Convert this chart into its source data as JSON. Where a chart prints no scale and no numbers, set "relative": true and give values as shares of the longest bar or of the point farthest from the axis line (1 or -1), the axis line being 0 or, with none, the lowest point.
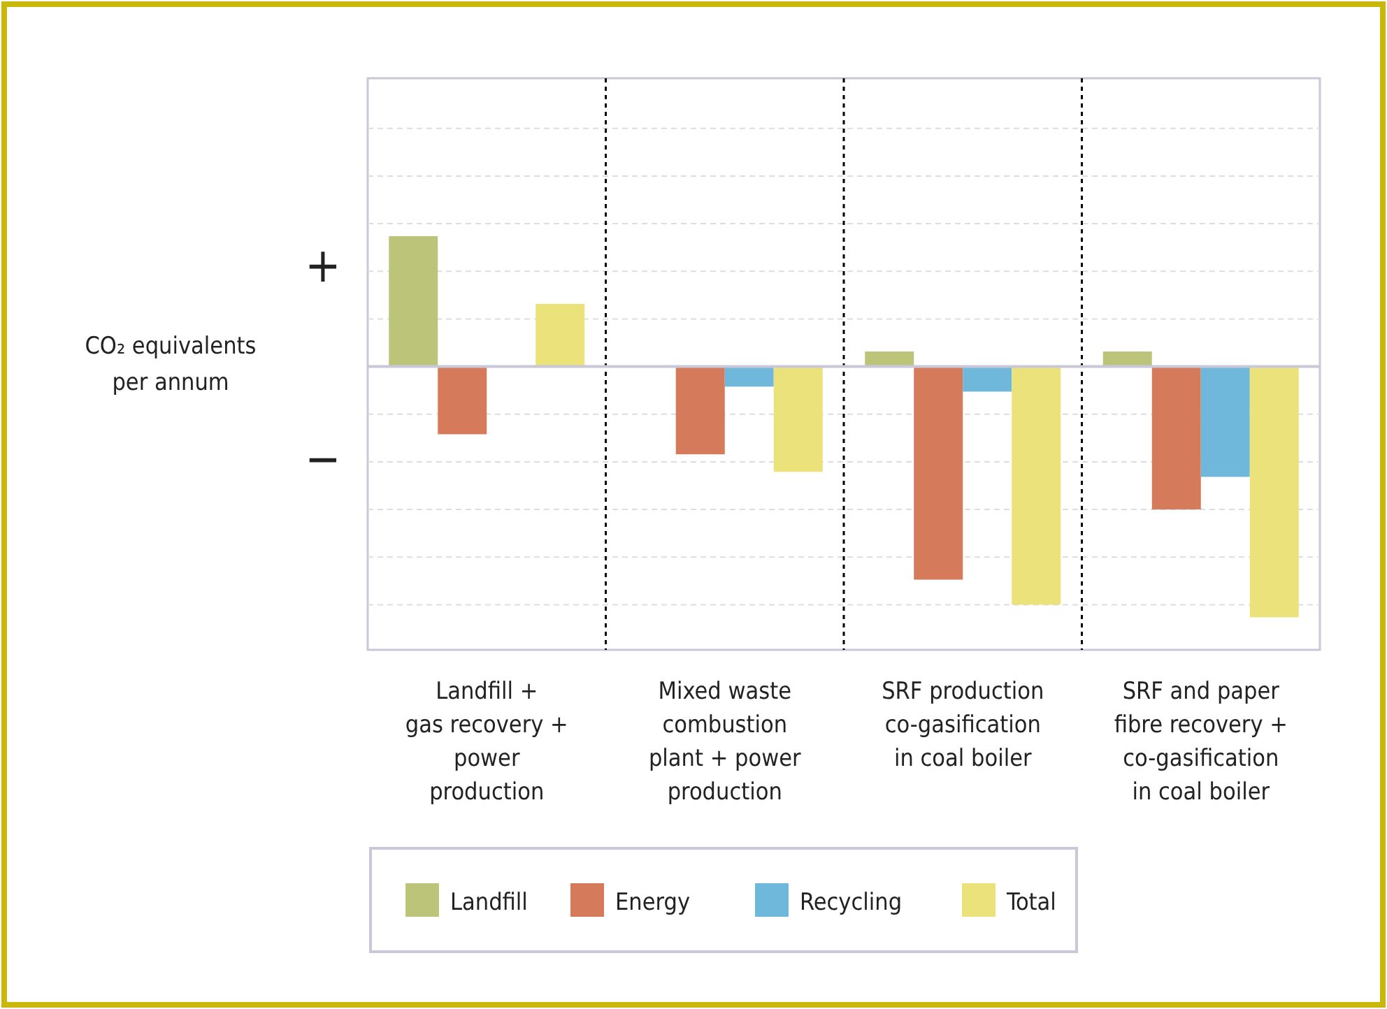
{
  "chart_data": {
    "type": "bar",
    "relative": true,
    "ylabel": "CO₂ equivalents\nper annum",
    "categories": [
      "Landfill +\ngas recovery +\npower\nproduction",
      "Mixed waste\ncombustion\nplant + power\nproduction",
      "SRF production\nco-gasification\nin coal boiler",
      "SRF and paper\nfibre recovery +\nco-gasification\nin coal boiler"
    ],
    "series": [
      {
        "name": "Landfill",
        "color": "#bcc47a",
        "values": [
          0.52,
          null,
          0.06,
          0.06
        ]
      },
      {
        "name": "Energy",
        "color": "#d57b5c",
        "values": [
          -0.27,
          -0.35,
          -0.85,
          -0.57
        ]
      },
      {
        "name": "Recycling",
        "color": "#6fb8dc",
        "values": [
          null,
          -0.08,
          -0.1,
          -0.44
        ]
      },
      {
        "name": "Total",
        "color": "#ebe27b",
        "values": [
          0.25,
          -0.42,
          -0.95,
          -1
        ]
      }
    ],
    "annotations": [
      "+",
      "−"
    ],
    "grid": "y",
    "legend": "bottom"
  }
}
